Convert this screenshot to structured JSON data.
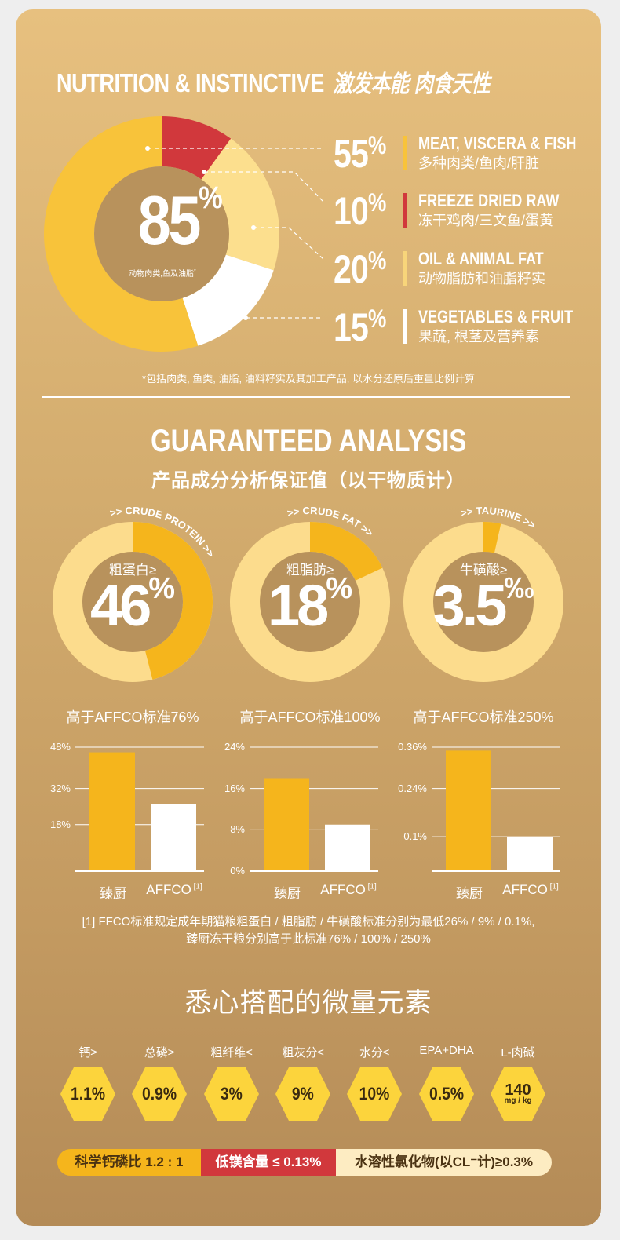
{
  "section1": {
    "title_en": "NUTRITION & INSTINCTIVE",
    "title_cn": "激发本能 肉食天性",
    "center_value": "85",
    "center_unit": "%",
    "center_caption": "动物肉类,鱼及油脂",
    "center_caption_mark": "*",
    "segments": [
      {
        "pct": 55,
        "pct_label": "55",
        "unit": "%",
        "label_en": "MEAT, VISCERA & FISH",
        "label_cn": "多种肉类/鱼肉/肝脏",
        "color": "#f8c33a"
      },
      {
        "pct": 10,
        "pct_label": "10",
        "unit": "%",
        "label_en": "FREEZE DRIED RAW",
        "label_cn": "冻干鸡肉/三文鱼/蛋黄",
        "color": "#d1383c"
      },
      {
        "pct": 20,
        "pct_label": "20",
        "unit": "%",
        "label_en": "OIL & ANIMAL FAT",
        "label_cn": "动物脂肪和油脂籽实",
        "color": "#fcdf8e"
      },
      {
        "pct": 15,
        "pct_label": "15",
        "unit": "%",
        "label_en": "VEGETABLES & FRUIT",
        "label_cn": "果蔬, 根茎及营养素",
        "color": "#ffffff"
      }
    ],
    "footnote": "*包括肉类, 鱼类, 油脂, 油料籽实及其加工产品, 以水分还原后重量比例计算"
  },
  "section2": {
    "title_en": "GUARANTEED ANALYSIS",
    "title_cn": "产品成分分析保证值（以干物质计）",
    "donuts": [
      {
        "arc_label": ">> CRUDE PROTEIN >>",
        "label_cn": "粗蛋白≥",
        "value": "46",
        "unit": "%",
        "fill": 0.46,
        "standard": "高于AFFCO标准76%"
      },
      {
        "arc_label": ">> CRUDE FAT >>",
        "label_cn": "粗脂肪≥",
        "value": "18",
        "unit": "%",
        "fill": 0.18,
        "standard": "高于AFFCO标准100%"
      },
      {
        "arc_label": ">> TAURINE >>",
        "label_cn": "牛磺酸≥",
        "value": "3.5",
        "unit": "‰",
        "fill": 0.035,
        "standard": "高于AFFCO标准250%"
      }
    ],
    "colors": {
      "fill": "#f5b51c",
      "track": "#fcdc8d",
      "inner": "#b8925c"
    }
  },
  "chart_data": [
    {
      "type": "bar",
      "categories": [
        "臻厨",
        "AFFCO"
      ],
      "category_note": "[1]",
      "values": [
        46,
        26
      ],
      "yticks": [
        "48%",
        "32%",
        "18%"
      ],
      "ytick_values": [
        48,
        32,
        18
      ],
      "ylim": [
        0,
        48
      ],
      "colors": [
        "#f5b51c",
        "#ffffff"
      ]
    },
    {
      "type": "bar",
      "categories": [
        "臻厨",
        "AFFCO"
      ],
      "category_note": "[1]",
      "values": [
        18,
        9
      ],
      "yticks": [
        "24%",
        "16%",
        "8%",
        "0%"
      ],
      "ytick_values": [
        24,
        16,
        8,
        0
      ],
      "ylim": [
        0,
        24
      ],
      "colors": [
        "#f5b51c",
        "#ffffff"
      ]
    },
    {
      "type": "bar",
      "categories": [
        "臻厨",
        "AFFCO"
      ],
      "category_note": "[1]",
      "values": [
        0.35,
        0.1
      ],
      "yticks": [
        "0.36%",
        "0.24%",
        "0.1%"
      ],
      "ytick_values": [
        0.36,
        0.24,
        0.1
      ],
      "ylim": [
        0,
        0.36
      ],
      "colors": [
        "#f5b51c",
        "#ffffff"
      ]
    }
  ],
  "note": {
    "line1": "[1] FFCO标准规定成年期猫粮粗蛋白 / 粗脂肪 / 牛磺酸标准分别为最低26% / 9% / 0.1%,",
    "line2": "臻厨冻干粮分别高于此标准76% / 100% / 250%"
  },
  "section3": {
    "title": "悉心搭配的微量元素",
    "items": [
      {
        "label": "钙≥",
        "value": "1.1%"
      },
      {
        "label": "总磷≥",
        "value": "0.9%"
      },
      {
        "label": "粗纤维≤",
        "value": "3%"
      },
      {
        "label": "粗灰分≤",
        "value": "9%"
      },
      {
        "label": "水分≤",
        "value": "10%"
      },
      {
        "label": "EPA+DHA",
        "value": "0.5%"
      },
      {
        "label": "L-肉碱",
        "value": "140",
        "unit": "mg / kg"
      }
    ],
    "pill": [
      {
        "text": "科学钙磷比 1.2 : 1",
        "bg": "#f5b51c",
        "fg": "#4a3212"
      },
      {
        "text": "低镁含量 ≤ 0.13%",
        "bg": "#d1383c",
        "fg": "#ffffff"
      },
      {
        "text": "水溶性氯化物(以CL⁻计)≥0.3%",
        "bg": "#fdecc2",
        "fg": "#4a3212"
      }
    ]
  }
}
